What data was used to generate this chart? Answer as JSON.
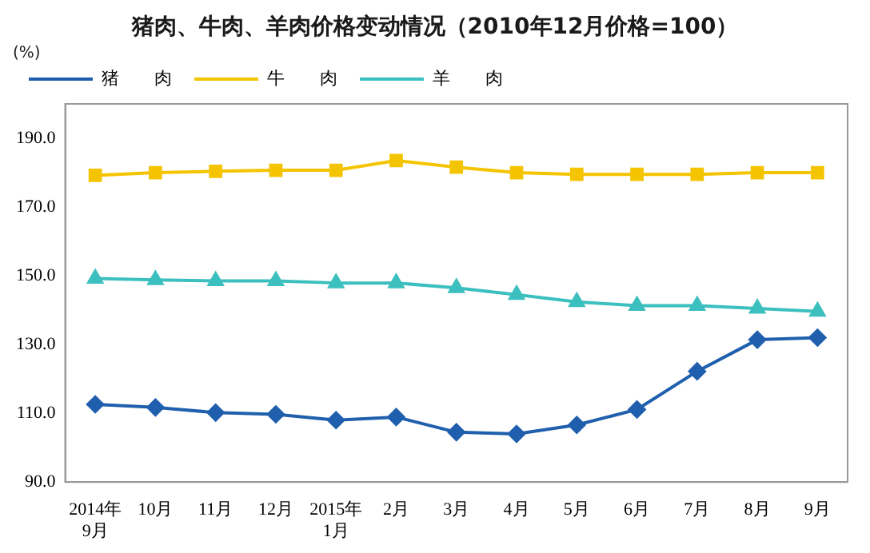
{
  "chart_data": {
    "type": "line",
    "title": "猪肉、牛肉、羊肉价格变动情况（2010年12月价格=100）",
    "ylabel": "(%)",
    "categories": [
      "2014年\n9月",
      "10月",
      "11月",
      "12月",
      "2015年\n1月",
      "2月",
      "3月",
      "4月",
      "5月",
      "6月",
      "7月",
      "8月",
      "9月"
    ],
    "series": [
      {
        "name": "猪　　肉",
        "color": "#1f5fad",
        "marker": "diamond",
        "values": [
          112.6,
          111.7,
          110.2,
          109.7,
          108.0,
          108.9,
          104.5,
          104.0,
          106.6,
          111.1,
          122.2,
          131.4,
          132.0
        ]
      },
      {
        "name": "牛　　肉",
        "color": "#f5c400",
        "marker": "square",
        "values": [
          179.2,
          180.0,
          180.4,
          180.7,
          180.7,
          183.5,
          181.6,
          180.0,
          179.5,
          179.5,
          179.5,
          180.0,
          180.0
        ]
      },
      {
        "name": "羊　　肉",
        "color": "#3cbfbf",
        "marker": "triangle",
        "values": [
          149.2,
          148.8,
          148.5,
          148.5,
          147.9,
          147.9,
          146.5,
          144.5,
          142.4,
          141.3,
          141.3,
          140.5,
          139.6
        ]
      }
    ],
    "ylim": [
      90,
      200
    ],
    "yticks": [
      {
        "value": 90,
        "label": "90.0"
      },
      {
        "value": 110,
        "label": "110.0"
      },
      {
        "value": 130,
        "label": "130.0"
      },
      {
        "value": 150,
        "label": "150.0"
      },
      {
        "value": 170,
        "label": "170.0"
      },
      {
        "value": 190,
        "label": "190.0"
      }
    ],
    "grid": false,
    "legend": "top left",
    "line_style": "solid"
  }
}
